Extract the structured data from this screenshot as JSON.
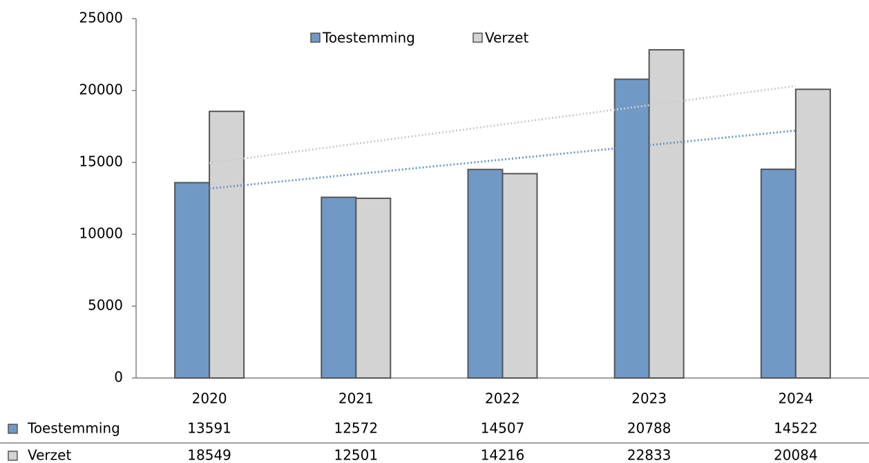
{
  "chart_data": {
    "type": "bar",
    "categories": [
      "2020",
      "2021",
      "2022",
      "2023",
      "2024"
    ],
    "series": [
      {
        "name": "Toestemming",
        "color": "#7099c6",
        "values": [
          13591,
          12572,
          14507,
          20788,
          14522
        ]
      },
      {
        "name": "Verzet",
        "color": "#d3d3d3",
        "values": [
          18549,
          12501,
          14216,
          22833,
          20084
        ]
      }
    ],
    "ylim": [
      0,
      25000
    ],
    "yticks": [
      0,
      5000,
      10000,
      15000,
      20000,
      25000
    ],
    "trendline": "linear",
    "legend": "top",
    "data_table": true
  }
}
